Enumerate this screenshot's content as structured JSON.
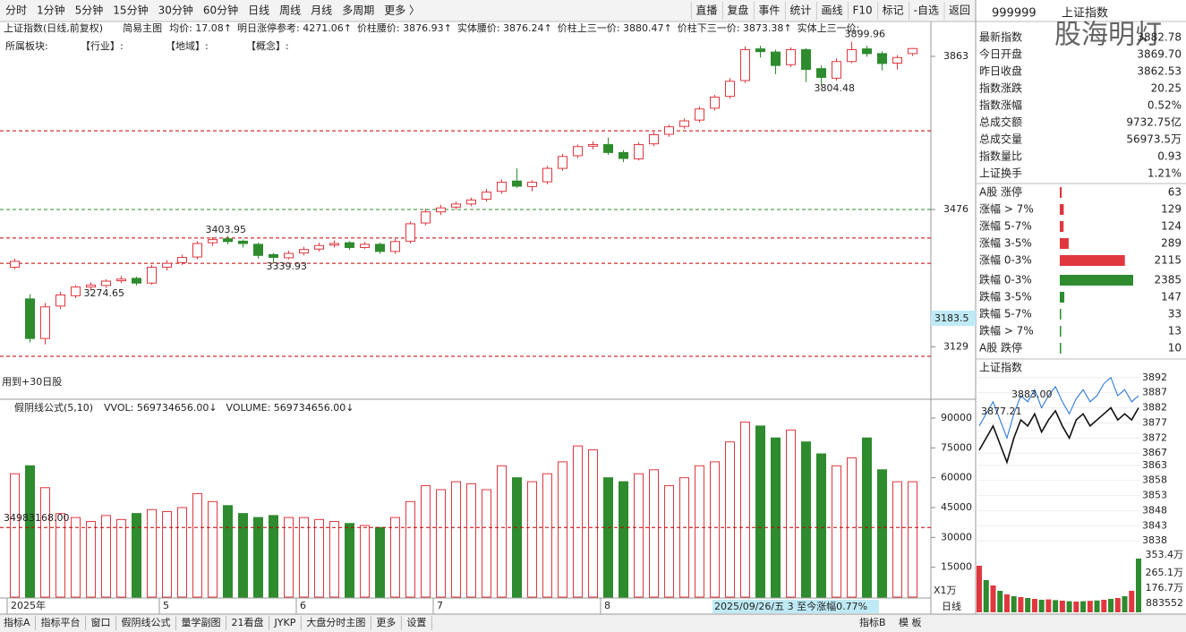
{
  "toolbar": {
    "left": [
      "分时",
      "1分钟",
      "5分钟",
      "15分钟",
      "30分钟",
      "60分钟",
      "日线",
      "周线",
      "月线",
      "多周期",
      "更多 〉"
    ],
    "active": "日线",
    "right": [
      "直播",
      "复盘",
      "事件",
      "统计",
      "画线",
      "F10",
      "标记",
      "-自选",
      "返回"
    ]
  },
  "info": {
    "name": "上证指数(日线,前复权)",
    "mode": "简易主图",
    "items": [
      "均价: 17.08↑",
      "明日涨停参考: 4271.06↑",
      "价柱腰价: 3876.93↑",
      "实体腰价: 3876.24↑",
      "价柱上三一价: 3880.47↑",
      "价柱下三一价: 3873.38↑",
      "实体上三一价:"
    ],
    "sectors": [
      "所属板块:",
      "【行业】:",
      "【地域】:",
      "【概念】:"
    ]
  },
  "chart_data": {
    "type": "candlestick",
    "ylim": [
      3010,
      3915
    ],
    "yticks": [
      3129,
      3476,
      3863
    ],
    "cursor_label": "3183.5",
    "levels": [
      {
        "value": 3675,
        "color": "#c00000"
      },
      {
        "value": 3476,
        "color": "#2e8b2e"
      },
      {
        "value": 3404,
        "color": "#c00000"
      },
      {
        "value": 3340,
        "color": "#c00000"
      },
      {
        "value": 3105,
        "color": "#c00000"
      }
    ],
    "annotations": [
      {
        "text": "3403.95",
        "at": 13
      },
      {
        "text": "3339.93",
        "at": 17
      },
      {
        "text": "3274.65",
        "at": 5
      },
      {
        "text": "3899.96",
        "at": 55
      },
      {
        "text": "3804.48",
        "at": 53
      }
    ],
    "up_color": "#e0373f",
    "down_color": "#2e8b2e",
    "open": [
      3330,
      3250,
      3150,
      3232,
      3258,
      3280,
      3284,
      3296,
      3302,
      3290,
      3330,
      3342,
      3356,
      3392,
      3402,
      3396,
      3388,
      3362,
      3354,
      3366,
      3376,
      3386,
      3392,
      3380,
      3388,
      3370,
      3396,
      3442,
      3470,
      3482,
      3490,
      3502,
      3522,
      3548,
      3534,
      3546,
      3580,
      3612,
      3636,
      3640,
      3620,
      3604,
      3642,
      3666,
      3686,
      3702,
      3732,
      3762,
      3802,
      3882,
      3874,
      3842,
      3880,
      3832,
      3808,
      3850,
      3882,
      3870,
      3846,
      3870
    ],
    "high": [
      3352,
      3262,
      3240,
      3268,
      3285,
      3292,
      3300,
      3308,
      3306,
      3336,
      3348,
      3362,
      3396,
      3406,
      3410,
      3400,
      3392,
      3366,
      3372,
      3382,
      3392,
      3398,
      3396,
      3394,
      3392,
      3402,
      3446,
      3478,
      3488,
      3496,
      3506,
      3528,
      3552,
      3580,
      3550,
      3586,
      3616,
      3640,
      3648,
      3658,
      3626,
      3646,
      3672,
      3690,
      3706,
      3736,
      3766,
      3808,
      3888,
      3890,
      3880,
      3886,
      3884,
      3840,
      3858,
      3900,
      3890,
      3876,
      3866,
      3884
    ],
    "low": [
      3325,
      3140,
      3135,
      3225,
      3252,
      3272,
      3278,
      3290,
      3284,
      3286,
      3322,
      3336,
      3350,
      3384,
      3388,
      3380,
      3352,
      3340,
      3350,
      3360,
      3370,
      3380,
      3374,
      3376,
      3364,
      3364,
      3390,
      3436,
      3462,
      3476,
      3484,
      3496,
      3516,
      3530,
      3522,
      3540,
      3574,
      3606,
      3628,
      3614,
      3596,
      3600,
      3636,
      3660,
      3680,
      3696,
      3726,
      3756,
      3796,
      3860,
      3818,
      3836,
      3798,
      3790,
      3802,
      3846,
      3862,
      3828,
      3830,
      3864
    ],
    "close": [
      3345,
      3150,
      3230,
      3260,
      3280,
      3285,
      3295,
      3300,
      3290,
      3330,
      3340,
      3355,
      3390,
      3400,
      3395,
      3390,
      3360,
      3355,
      3365,
      3375,
      3385,
      3390,
      3380,
      3388,
      3370,
      3395,
      3440,
      3470,
      3480,
      3490,
      3500,
      3520,
      3545,
      3535,
      3545,
      3580,
      3610,
      3635,
      3640,
      3620,
      3605,
      3640,
      3665,
      3685,
      3700,
      3730,
      3760,
      3800,
      3880,
      3875,
      3840,
      3880,
      3830,
      3810,
      3850,
      3880,
      3870,
      3845,
      3860,
      3882.78
    ],
    "x_labels": [
      {
        "label": "2025年",
        "at": 0
      },
      {
        "label": "5",
        "at": 10
      },
      {
        "label": "6",
        "at": 19
      },
      {
        "label": "7",
        "at": 28
      },
      {
        "label": "8",
        "at": 39
      }
    ],
    "bottom_note": "用到+30日股",
    "status": "2025/09/26/五 3 至今涨幅0.77%"
  },
  "volume": {
    "header": "假阴线公式(5,10)",
    "vvol": "VVOL: 569734656.00↓",
    "vol": "VOLUME: 569734656.00↓",
    "ylim": [
      0,
      99000
    ],
    "yticks": [
      15000,
      30000,
      45000,
      60000,
      75000,
      90000
    ],
    "ref_line": 35000,
    "ref_label": "34983168.00",
    "unit": "X1万",
    "values": [
      62000,
      66000,
      55000,
      42000,
      40000,
      38000,
      41000,
      39000,
      42000,
      44000,
      43000,
      45000,
      52000,
      48000,
      46000,
      42000,
      40000,
      41000,
      40000,
      40000,
      39000,
      38000,
      37000,
      36000,
      35000,
      40000,
      48000,
      56000,
      54000,
      58000,
      57000,
      54000,
      66000,
      60000,
      58000,
      62000,
      68000,
      76000,
      74000,
      60000,
      58000,
      62000,
      64000,
      56000,
      60000,
      66000,
      68000,
      78000,
      88000,
      86000,
      80000,
      84000,
      78000,
      72000,
      66000,
      70000,
      80000,
      64000,
      58000,
      58000
    ]
  },
  "panel": {
    "code": "999999",
    "name": "上证指数",
    "watermark": "股海明灯",
    "stats": [
      {
        "label": "最新指数",
        "value": "3882.78",
        "color": "#e0373f"
      },
      {
        "label": "今日开盘",
        "value": "3869.70",
        "color": "#e0373f"
      },
      {
        "label": "昨日收盘",
        "value": "3862.53",
        "color": "#222222"
      },
      {
        "label": "指数涨跌",
        "value": "20.25",
        "color": "#e0373f"
      },
      {
        "label": "指数涨幅",
        "value": "0.52%",
        "color": "#e0373f"
      },
      {
        "label": "总成交额",
        "value": "9732.75亿",
        "color": "#222222"
      },
      {
        "label": "总成交量",
        "value": "56973.5万",
        "color": "#222222"
      },
      {
        "label": "指数量比",
        "value": "0.93",
        "color": "#2e8b2e"
      },
      {
        "label": "上证换手",
        "value": "1.21%",
        "color": "#222222"
      }
    ],
    "breadth": [
      {
        "label": "A股 涨停",
        "value": 63,
        "color": "#e0373f"
      },
      {
        "label": "涨幅 > 7%",
        "value": 129,
        "color": "#e0373f"
      },
      {
        "label": "涨幅 5-7%",
        "value": 124,
        "color": "#e0373f"
      },
      {
        "label": "涨幅 3-5%",
        "value": 289,
        "color": "#e0373f"
      },
      {
        "label": "涨幅 0-3%",
        "value": 2115,
        "color": "#e0373f"
      },
      {
        "label": "跌幅 0-3%",
        "value": 2385,
        "color": "#2e8b2e"
      },
      {
        "label": "跌幅 3-5%",
        "value": 147,
        "color": "#2e8b2e"
      },
      {
        "label": "跌幅 5-7%",
        "value": 33,
        "color": "#2e8b2e"
      },
      {
        "label": "跌幅 > 7%",
        "value": 13,
        "color": "#2e8b2e"
      },
      {
        "label": "A股 跌停",
        "value": 10,
        "color": "#2e8b2e"
      }
    ],
    "mini": {
      "title": "上证指数",
      "ylim": [
        3836,
        3894
      ],
      "yticks": [
        3892,
        3887,
        3882,
        3877,
        3872,
        3867,
        3863,
        3858,
        3853,
        3848,
        3843,
        3838
      ],
      "marks": [
        "3883.00",
        "3877.21"
      ],
      "blue": [
        3876,
        3880,
        3884,
        3878,
        3872,
        3880,
        3886,
        3884,
        3888,
        3882,
        3886,
        3889,
        3884,
        3880,
        3885,
        3888,
        3884,
        3886,
        3890,
        3892,
        3886,
        3888,
        3884,
        3886
      ],
      "black": [
        3868,
        3872,
        3876,
        3870,
        3864,
        3872,
        3878,
        3876,
        3880,
        3874,
        3878,
        3881,
        3876,
        3872,
        3878,
        3880,
        3876,
        3878,
        3880,
        3882,
        3878,
        3880,
        3878,
        3882
      ],
      "vol_labels": [
        "353.4万",
        "265.1万",
        "176.7万",
        "883552"
      ],
      "vol": [
        260,
        180,
        150,
        120,
        100,
        90,
        85,
        80,
        75,
        70,
        72,
        68,
        65,
        62,
        60,
        62,
        64,
        66,
        70,
        75,
        80,
        90,
        120,
        300
      ]
    }
  },
  "tabs": [
    "指标A",
    "指标平台",
    "窗口",
    "假阴线公式",
    "量学副图",
    "21看盘",
    "JYKP",
    "大盘分时主图",
    "更多",
    "设置"
  ],
  "tabs_right": [
    "指标B",
    "模 板",
    "日线"
  ]
}
